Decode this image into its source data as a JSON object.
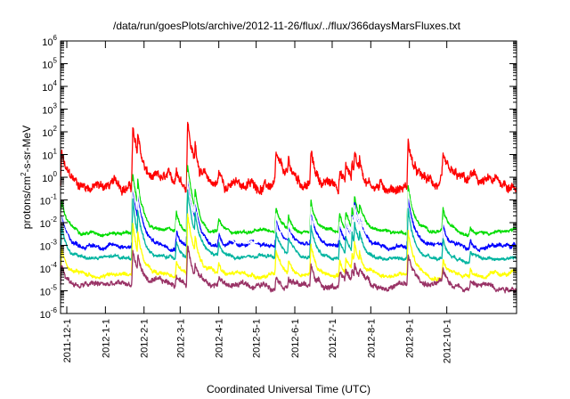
{
  "chart_data": {
    "type": "line",
    "title": "/data/run/goesPlots/archive/2012-11-26/flux/../flux/366daysMarsFluxes.txt",
    "xlabel": "Coordinated Universal Time (UTC)",
    "ylabel_main": "protons/cm",
    "ylabel_sup": "2",
    "ylabel_rest": "-s-sr-MeV",
    "yscale": "log",
    "ylim_exp": [
      -6,
      6
    ],
    "xlim": [
      "2011-11-26",
      "2012-11-26"
    ],
    "y_ticks": [
      {
        "base": "10",
        "exp": "-6"
      },
      {
        "base": "10",
        "exp": "-5"
      },
      {
        "base": "10",
        "exp": "-4"
      },
      {
        "base": "10",
        "exp": "-3"
      },
      {
        "base": "10",
        "exp": "-2"
      },
      {
        "base": "10",
        "exp": "-1"
      },
      {
        "base": "10",
        "exp": "0"
      },
      {
        "base": "10",
        "exp": "1"
      },
      {
        "base": "10",
        "exp": "2"
      },
      {
        "base": "10",
        "exp": "3"
      },
      {
        "base": "10",
        "exp": "4"
      },
      {
        "base": "10",
        "exp": "5"
      },
      {
        "base": "10",
        "exp": "6"
      }
    ],
    "x_ticks": [
      "2011-12-1",
      "2012-1-1",
      "2012-2-1",
      "2012-3-1",
      "2012-4-1",
      "2012-5-1",
      "2012-6-1",
      "2012-7-1",
      "2012-8-1",
      "2012-9-1",
      "2012-10-1"
    ],
    "grid": false,
    "events": [
      {
        "date": "2011-11-27",
        "amp": 1.4,
        "width": 4
      },
      {
        "date": "2012-01-23",
        "amp": 2.55,
        "width": 5
      },
      {
        "date": "2012-01-27",
        "amp": 2.2,
        "width": 5
      },
      {
        "date": "2012-02-27",
        "amp": 0.8,
        "width": 4
      },
      {
        "date": "2012-03-07",
        "amp": 3.0,
        "width": 6
      },
      {
        "date": "2012-03-13",
        "amp": 1.9,
        "width": 5
      },
      {
        "date": "2012-04-01",
        "amp": 0.6,
        "width": 3
      },
      {
        "date": "2012-05-17",
        "amp": 1.1,
        "width": 5
      },
      {
        "date": "2012-05-27",
        "amp": 0.8,
        "width": 4
      },
      {
        "date": "2012-06-14",
        "amp": 1.4,
        "width": 4
      },
      {
        "date": "2012-07-07",
        "amp": 0.8,
        "width": 4
      },
      {
        "date": "2012-07-12",
        "amp": 1.0,
        "width": 4
      },
      {
        "date": "2012-07-17",
        "amp": 1.1,
        "width": 4
      },
      {
        "date": "2012-07-19",
        "amp": 1.6,
        "width": 5
      },
      {
        "date": "2012-07-23",
        "amp": 1.2,
        "width": 5
      },
      {
        "date": "2012-08-31",
        "amp": 2.1,
        "width": 5
      },
      {
        "date": "2012-09-28",
        "amp": 0.9,
        "width": 4
      },
      {
        "date": "2012-10-20",
        "amp": 0.4,
        "width": 3
      }
    ],
    "series": [
      {
        "color": "#ff0000",
        "baseline_log": -0.35,
        "noise": 0.28,
        "event_scale": 1.0
      },
      {
        "color": "#00dd00",
        "baseline_log": -2.4,
        "noise": 0.1,
        "event_scale": 1.0
      },
      {
        "color": "#0000ff",
        "baseline_log": -3.0,
        "noise": 0.12,
        "event_scale": 1.05
      },
      {
        "color": "#ffffff",
        "baseline_log": -2.75,
        "noise": 0.09,
        "event_scale": 1.0
      },
      {
        "color": "#00b4a0",
        "baseline_log": -3.55,
        "noise": 0.1,
        "event_scale": 1.0
      },
      {
        "color": "#ffff00",
        "baseline_log": -4.3,
        "noise": 0.12,
        "event_scale": 0.9
      },
      {
        "color": "#993366",
        "baseline_log": -4.75,
        "noise": 0.16,
        "event_scale": 0.6
      }
    ]
  }
}
